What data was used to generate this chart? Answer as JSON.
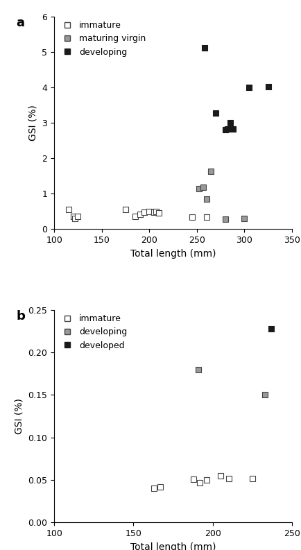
{
  "plot_a": {
    "immature": {
      "x": [
        115,
        120,
        122,
        125,
        175,
        185,
        190,
        195,
        200,
        205,
        207,
        210,
        245,
        260
      ],
      "y": [
        0.55,
        0.35,
        0.3,
        0.35,
        0.55,
        0.35,
        0.42,
        0.48,
        0.5,
        0.48,
        0.5,
        0.45,
        0.33,
        0.33
      ]
    },
    "maturing_virgin": {
      "x": [
        252,
        257,
        260,
        265,
        280,
        300
      ],
      "y": [
        1.15,
        1.18,
        0.85,
        1.63,
        0.28,
        0.3
      ]
    },
    "developing": {
      "x": [
        258,
        270,
        280,
        282,
        285,
        288,
        305,
        325
      ],
      "y": [
        5.12,
        3.27,
        2.8,
        2.82,
        3.0,
        2.82,
        3.99,
        4.02
      ]
    },
    "xlabel": "Total length (mm)",
    "ylabel": "GSI (%)",
    "xlim": [
      100,
      350
    ],
    "ylim": [
      0,
      6
    ],
    "yticks": [
      0,
      1,
      2,
      3,
      4,
      5,
      6
    ],
    "xticks": [
      100,
      150,
      200,
      250,
      300,
      350
    ],
    "legend_labels": [
      "immature",
      "maturing virgin",
      "developing"
    ],
    "panel_label": "a"
  },
  "plot_b": {
    "immature": {
      "x": [
        163,
        167,
        188,
        192,
        196,
        205,
        210,
        225
      ],
      "y": [
        0.04,
        0.042,
        0.051,
        0.047,
        0.05,
        0.055,
        0.052,
        0.052
      ]
    },
    "developing": {
      "x": [
        191,
        233
      ],
      "y": [
        0.18,
        0.15
      ]
    },
    "developed": {
      "x": [
        237
      ],
      "y": [
        0.228
      ]
    },
    "xlabel": "Total length (mm)",
    "ylabel": "GSI (%)",
    "xlim": [
      100,
      250
    ],
    "ylim": [
      0.0,
      0.25
    ],
    "yticks": [
      0.0,
      0.05,
      0.1,
      0.15,
      0.2,
      0.25
    ],
    "xticks": [
      100,
      150,
      200,
      250
    ],
    "legend_labels": [
      "immature",
      "developing",
      "developed"
    ],
    "panel_label": "b"
  },
  "marker_size": 40,
  "immature_color": "white",
  "immature_edge": "#444444",
  "maturing_color": "#999999",
  "maturing_edge": "#444444",
  "developing_a_color": "#1a1a1a",
  "developing_a_edge": "#1a1a1a",
  "developing_b_color": "#999999",
  "developing_b_edge": "#444444",
  "developed_color": "#1a1a1a",
  "developed_edge": "#1a1a1a",
  "background_color": "#ffffff",
  "font_size": 10
}
